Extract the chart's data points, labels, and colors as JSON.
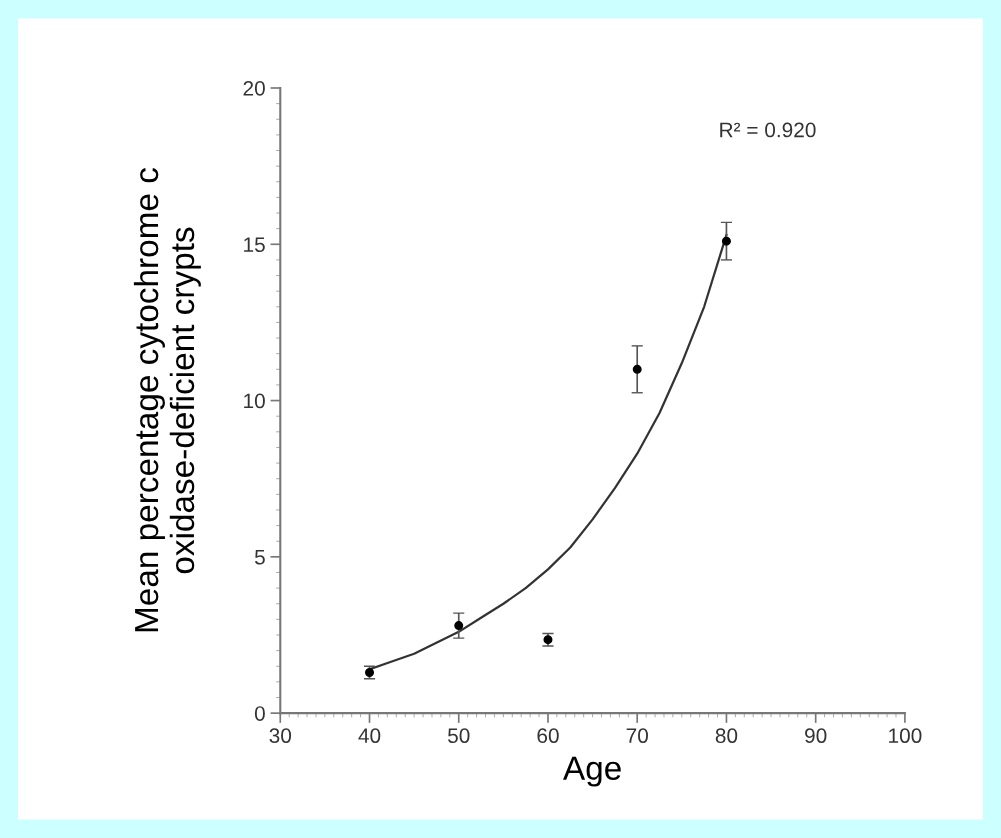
{
  "chart_data": {
    "type": "scatter",
    "xlabel": "Age",
    "ylabel": "Mean percentage cytochrome c\noxidase-deficient crypts",
    "annotations": [
      "R² = 0.920"
    ],
    "series": [
      {
        "marker": "circle",
        "color": "#000000",
        "x": [
          40,
          50,
          60,
          70,
          80
        ],
        "values": [
          1.3,
          2.8,
          2.35,
          11.0,
          15.1
        ],
        "errors": [
          0.2,
          0.4,
          0.2,
          0.75,
          0.6
        ]
      },
      {
        "type": "line",
        "marker": "none",
        "color": "#333333",
        "x": [
          40,
          42.5,
          45,
          47.5,
          50,
          52.5,
          55,
          57.5,
          60,
          62.5,
          65,
          67.5,
          70,
          72.5,
          75,
          77.5,
          80
        ],
        "values": [
          1.4,
          1.65,
          1.9,
          2.25,
          2.6,
          3.05,
          3.5,
          4.0,
          4.6,
          5.3,
          6.2,
          7.2,
          8.3,
          9.6,
          11.2,
          13.0,
          15.3
        ]
      }
    ],
    "xlim": [
      30,
      100
    ],
    "xticks": [
      30,
      40,
      50,
      60,
      70,
      80,
      90,
      100
    ],
    "ylim": [
      0,
      20
    ],
    "yticks": [
      0,
      5,
      10,
      15,
      20
    ],
    "grid": false,
    "legend": false
  }
}
